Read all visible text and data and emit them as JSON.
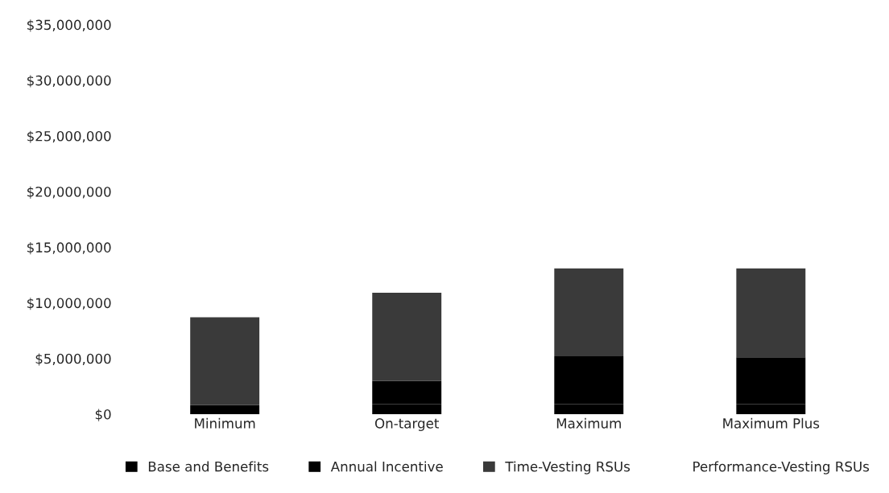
{
  "chart_data": {
    "type": "bar",
    "stacked": true,
    "categories": [
      "Minimum",
      "On-target",
      "Maximum",
      "Maximum Plus"
    ],
    "series": [
      {
        "name": "Base and Benefits",
        "color": "#000000",
        "values": [
          800000,
          900000,
          900000,
          900000
        ]
      },
      {
        "name": "Annual Incentive",
        "color": "#000000",
        "values": [
          0,
          2100000,
          4300000,
          4200000
        ]
      },
      {
        "name": "Time-Vesting RSUs",
        "color": "#3a3a3a",
        "values": [
          7900000,
          7900000,
          7900000,
          8000000
        ]
      },
      {
        "name": "Performance-Vesting RSUs",
        "values": [
          null,
          null,
          null,
          null
        ]
      }
    ],
    "ylim": [
      0,
      35000000
    ],
    "yticks": [
      {
        "value": 0,
        "label": "$0"
      },
      {
        "value": 5000000,
        "label": "$5,000,000"
      },
      {
        "value": 10000000,
        "label": "$10,000,000"
      },
      {
        "value": 15000000,
        "label": "$15,000,000"
      },
      {
        "value": 20000000,
        "label": "$20,000,000"
      },
      {
        "value": 25000000,
        "label": "$25,000,000"
      },
      {
        "value": 30000000,
        "label": "$30,000,000"
      },
      {
        "value": 35000000,
        "label": "$35,000,000"
      }
    ],
    "grid": false,
    "legend": "bottom"
  }
}
